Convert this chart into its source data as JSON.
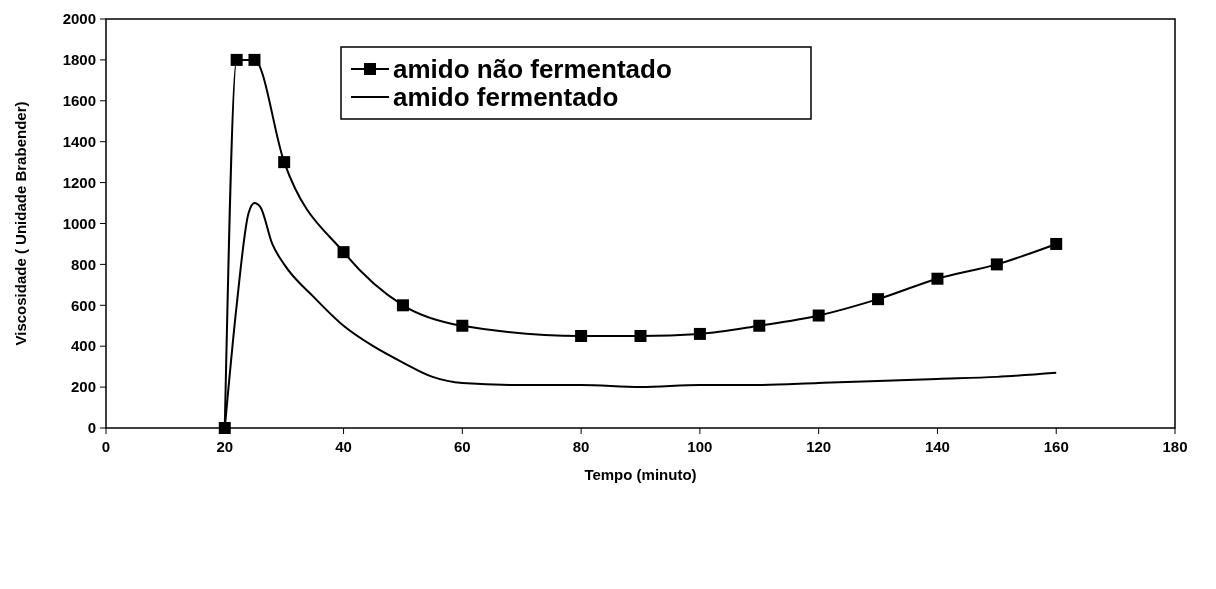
{
  "chart_data": {
    "type": "line",
    "xlabel": "Tempo (minuto)",
    "ylabel": "Viscosidade ( Unidade Brabender)",
    "xlim": [
      0,
      180
    ],
    "xticks": [
      0,
      20,
      40,
      60,
      80,
      100,
      120,
      140,
      160,
      180
    ],
    "ylim": [
      0,
      2000
    ],
    "yticks": [
      0,
      200,
      400,
      600,
      800,
      1000,
      1200,
      1400,
      1600,
      1800,
      2000
    ],
    "grid": false,
    "legend": "top",
    "line_style": "solid",
    "series": [
      {
        "name": "amido não fermentado",
        "color": "#000000",
        "marker": "square",
        "x": [
          20,
          22,
          25,
          30,
          40,
          50,
          60,
          80,
          90,
          100,
          110,
          120,
          130,
          140,
          150,
          160
        ],
        "values": [
          0,
          1800,
          1800,
          1300,
          860,
          600,
          500,
          450,
          450,
          460,
          500,
          550,
          630,
          730,
          800,
          900
        ]
      },
      {
        "name": "amido fermentado",
        "color": "#000000",
        "marker": "none",
        "x": [
          20,
          22,
          24,
          25,
          26,
          28,
          30,
          35,
          40,
          45,
          50,
          55,
          60,
          70,
          80,
          90,
          100,
          110,
          120,
          130,
          140,
          150,
          160
        ],
        "values": [
          0,
          600,
          1050,
          1100,
          1080,
          900,
          800,
          640,
          500,
          400,
          320,
          250,
          220,
          210,
          210,
          200,
          210,
          210,
          220,
          230,
          240,
          250,
          270
        ]
      }
    ]
  }
}
